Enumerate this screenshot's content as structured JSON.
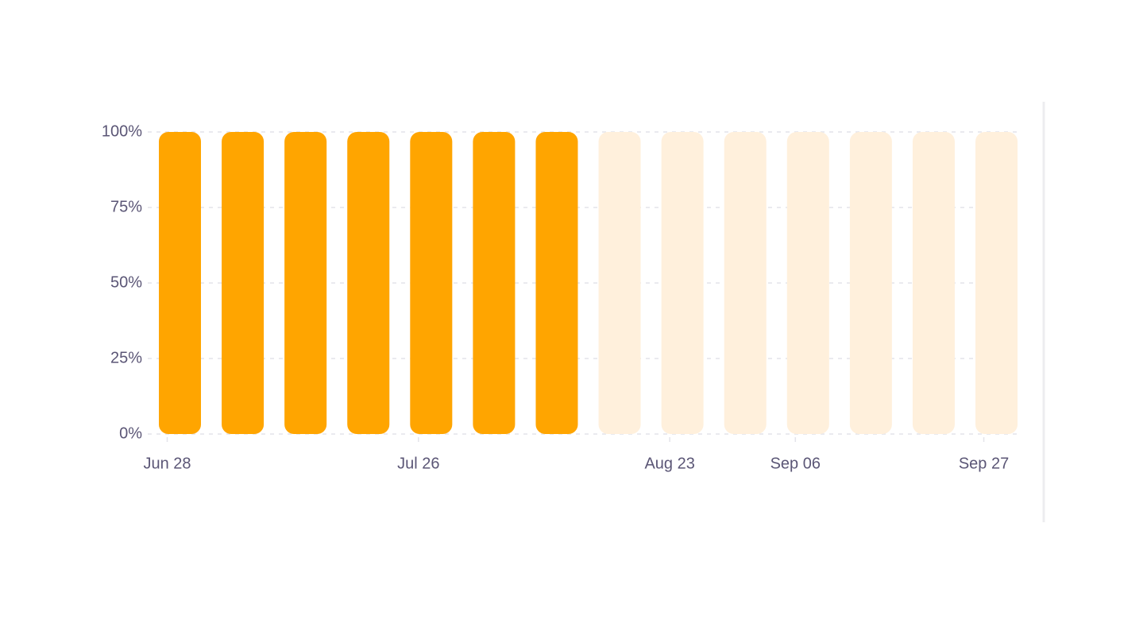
{
  "chart_data": {
    "type": "bar",
    "categories": [
      "Jun 28",
      null,
      null,
      null,
      "Jul 26",
      null,
      null,
      null,
      "Aug 23",
      null,
      "Sep 06",
      null,
      null,
      "Sep 27"
    ],
    "values": [
      100,
      100,
      100,
      100,
      100,
      100,
      100,
      null,
      null,
      null,
      null,
      null,
      null,
      null
    ],
    "color": "#ffa500",
    "ylim": [
      0,
      100
    ],
    "yticks": [
      {
        "value": 0,
        "label": "0%"
      },
      {
        "value": 25,
        "label": "25%"
      },
      {
        "value": 50,
        "label": "50%"
      },
      {
        "value": 75,
        "label": "75%"
      },
      {
        "value": 100,
        "label": "100%"
      }
    ],
    "grid": true
  }
}
